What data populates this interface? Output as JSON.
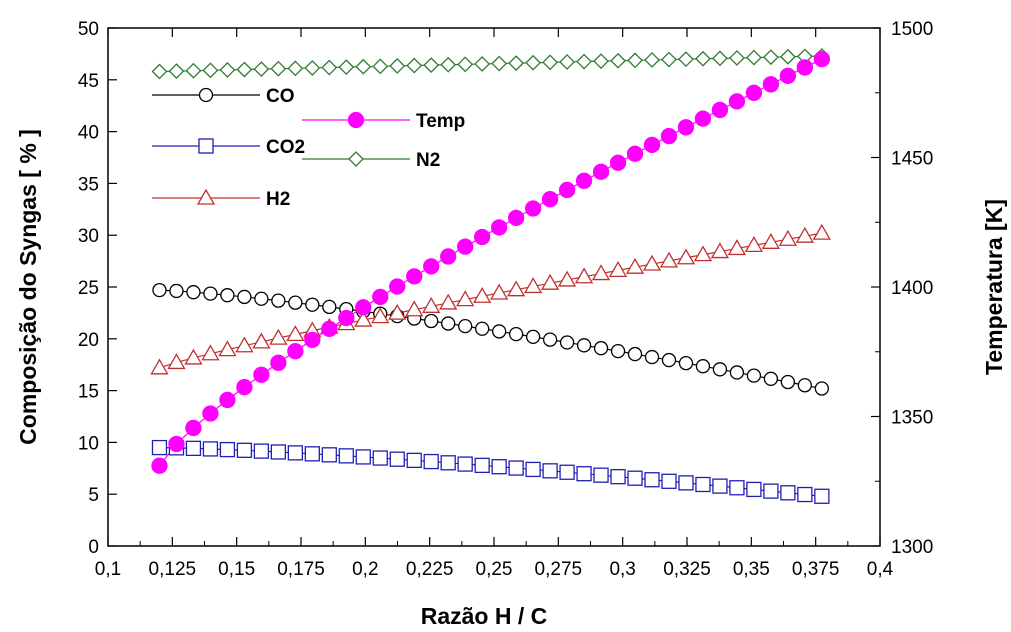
{
  "chart_data": {
    "type": "line",
    "xlabel": "Razão H / C",
    "ylabel_left": "Composição do Syngas [ % ]",
    "ylabel_right": "Temperatura  [K]",
    "x_ticks": [
      "0,1",
      "0,125",
      "0,15",
      "0,175",
      "0,2",
      "0,225",
      "0,25",
      "0,275",
      "0,3",
      "0,325",
      "0,35",
      "0,375",
      "0,4"
    ],
    "y_left_ticks": [
      "0",
      "5",
      "10",
      "15",
      "20",
      "25",
      "30",
      "35",
      "40",
      "45",
      "50"
    ],
    "y_right_ticks": [
      "1300",
      "1350",
      "1400",
      "1450",
      "1500"
    ],
    "xlim": [
      0.1,
      0.4
    ],
    "ylim_left": [
      0,
      50
    ],
    "ylim_right": [
      1300,
      1500
    ],
    "x_start": 0.12,
    "x_step": 0.0066,
    "n_points": 40,
    "grid": false,
    "series": [
      {
        "name": "CO",
        "axis": "left",
        "marker": "circle",
        "color": "#000000",
        "filled": false,
        "start": 24.7,
        "end": 15.2,
        "curve": 1.3
      },
      {
        "name": "CO2",
        "axis": "left",
        "marker": "square",
        "color": "#1f1fb4",
        "filled": false,
        "start": 9.5,
        "end": 4.8,
        "curve": 1.4
      },
      {
        "name": "H2",
        "axis": "left",
        "marker": "triangle",
        "color": "#c0302f",
        "filled": false,
        "start": 17.2,
        "end": 30.2,
        "curve": 0.88
      },
      {
        "name": "N2",
        "axis": "left",
        "marker": "diamond",
        "color": "#2e7d32",
        "filled": false,
        "start": 45.8,
        "end": 47.3,
        "curve": 1.0
      },
      {
        "name": "Temp",
        "axis": "right",
        "marker": "circle",
        "color": "#ff00ff",
        "filled": true,
        "start": 1331,
        "end": 1488,
        "curve": 0.8
      }
    ]
  }
}
